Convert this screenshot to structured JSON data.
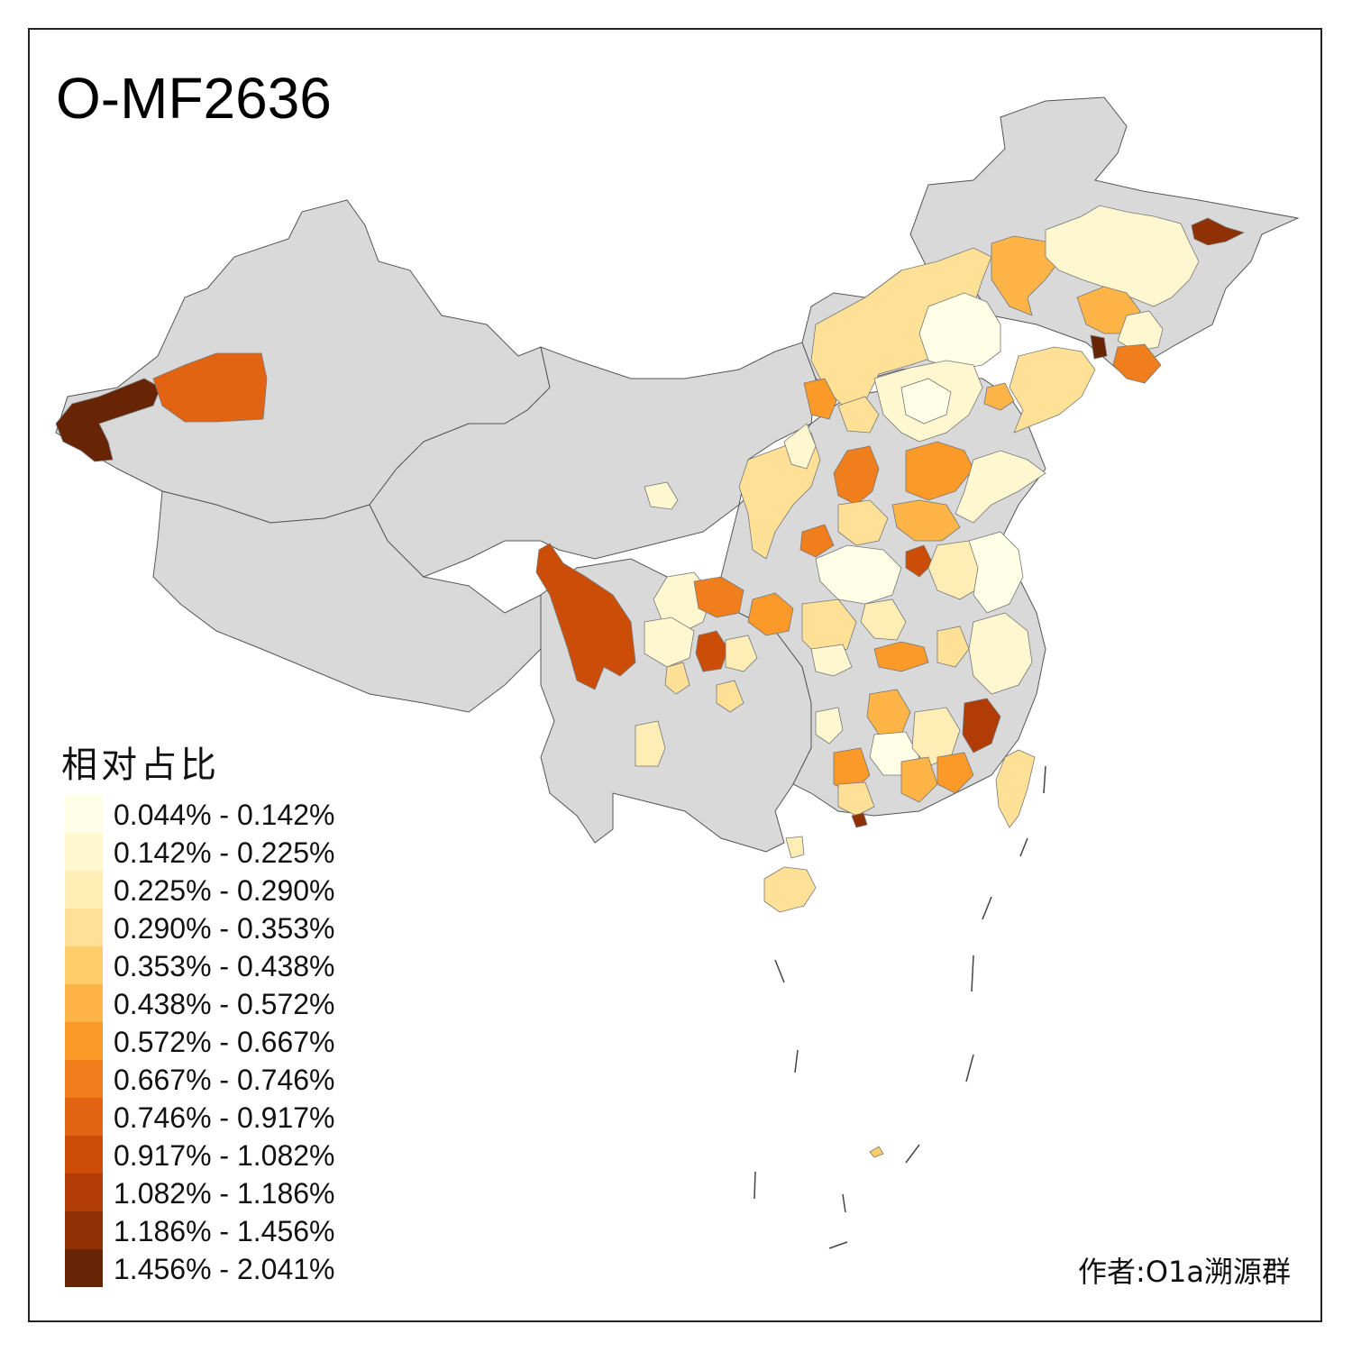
{
  "title": "O-MF2636",
  "legend": {
    "title": "相对占比",
    "items": [
      {
        "label": "0.044% - 0.142%",
        "color": "#fffee6"
      },
      {
        "label": "0.142% - 0.225%",
        "color": "#fff7cf"
      },
      {
        "label": "0.225% - 0.290%",
        "color": "#feedb4"
      },
      {
        "label": "0.290% - 0.353%",
        "color": "#fee197"
      },
      {
        "label": "0.353% - 0.438%",
        "color": "#fecd6a"
      },
      {
        "label": "0.438% - 0.572%",
        "color": "#feb447"
      },
      {
        "label": "0.572% - 0.667%",
        "color": "#fb9a29"
      },
      {
        "label": "0.667% - 0.746%",
        "color": "#f07e1c"
      },
      {
        "label": "0.746% - 0.917%",
        "color": "#e26412"
      },
      {
        "label": "0.917% - 1.082%",
        "color": "#cc4d08"
      },
      {
        "label": "1.082% - 1.186%",
        "color": "#b13c05"
      },
      {
        "label": "1.186% - 1.456%",
        "color": "#8f3104"
      },
      {
        "label": "1.456% - 2.041%",
        "color": "#682506"
      }
    ]
  },
  "author": "作者:O1a溯源群",
  "colors": {
    "no_data": "#d9d9d9",
    "border": "#555555"
  }
}
